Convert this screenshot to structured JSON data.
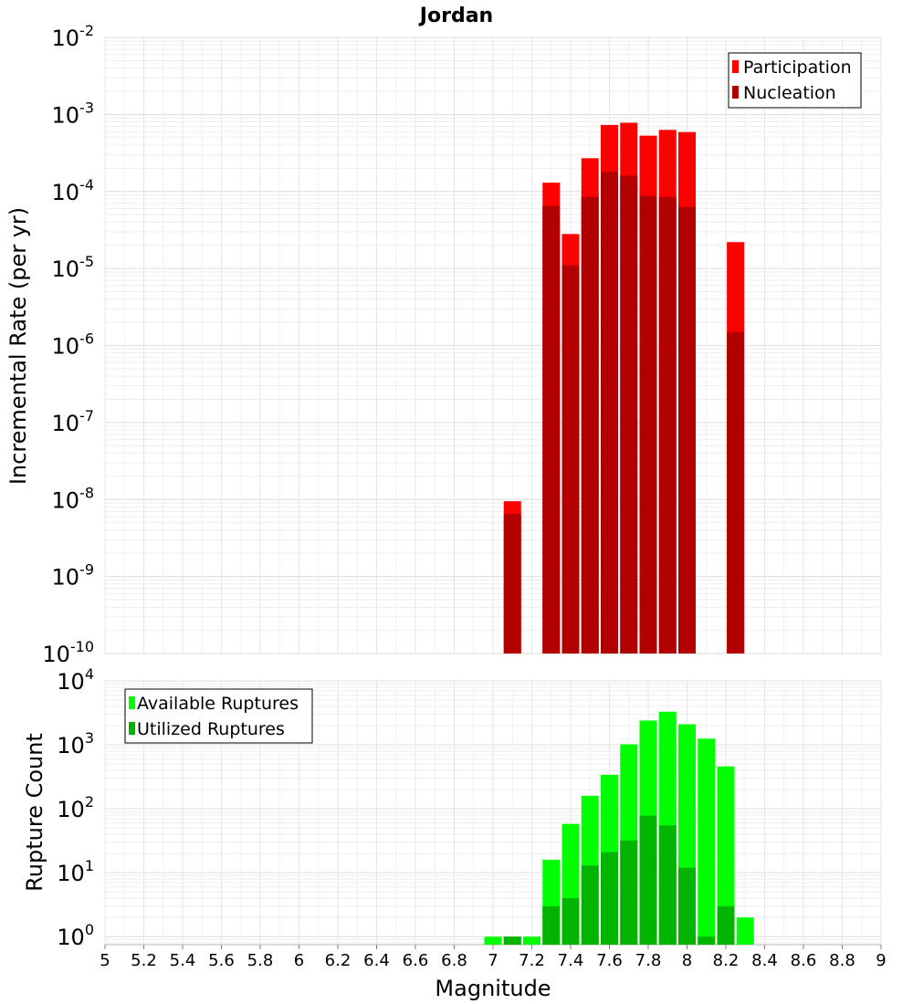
{
  "chart_data": [
    {
      "type": "bar",
      "scale": "log",
      "title": "Jordan",
      "xlabel": "Magnitude",
      "ylabel": "Incremental Rate (per yr)",
      "xlim": [
        5,
        9
      ],
      "ylim": [
        1e-10,
        0.01
      ],
      "y_tick_exponents": [
        -10,
        -9,
        -8,
        -7,
        -6,
        -5,
        -4,
        -3,
        -2
      ],
      "grid": true,
      "legend_position": "top-right",
      "series": [
        {
          "name": "Participation",
          "color": "#ff0000",
          "x": [
            7.1,
            7.3,
            7.4,
            7.5,
            7.6,
            7.7,
            7.8,
            7.9,
            8.0,
            8.25
          ],
          "values": [
            9.5e-09,
            0.00013,
            2.8e-05,
            0.00027,
            0.00073,
            0.00078,
            0.00053,
            0.00063,
            0.00059,
            2.2e-05
          ]
        },
        {
          "name": "Nucleation",
          "color": "#b20000",
          "x": [
            7.1,
            7.3,
            7.4,
            7.5,
            7.6,
            7.7,
            7.8,
            7.9,
            8.0,
            8.25
          ],
          "values": [
            6.5e-09,
            6.5e-05,
            1.1e-05,
            8.5e-05,
            0.00018,
            0.00016,
            8.8e-05,
            8.5e-05,
            6.3e-05,
            1.5e-06
          ]
        }
      ]
    },
    {
      "type": "bar",
      "scale": "log",
      "title": "",
      "xlabel": "Magnitude",
      "ylabel": "Rupture Count",
      "xlim": [
        5,
        9
      ],
      "ylim": [
        0.75,
        10000
      ],
      "y_tick_exponents": [
        0,
        1,
        2,
        3,
        4
      ],
      "x_ticks": [
        "5",
        "5.2",
        "5.4",
        "5.6",
        "5.8",
        "6",
        "6.2",
        "6.4",
        "6.6",
        "6.8",
        "7",
        "7.2",
        "7.4",
        "7.6",
        "7.8",
        "8",
        "8.2",
        "8.4",
        "8.6",
        "8.8",
        "9"
      ],
      "grid": true,
      "legend_position": "top-left",
      "series": [
        {
          "name": "Available Ruptures",
          "color": "#00ff00",
          "x": [
            7.0,
            7.1,
            7.2,
            7.3,
            7.4,
            7.5,
            7.6,
            7.7,
            7.8,
            7.9,
            8.0,
            8.1,
            8.2,
            8.3
          ],
          "values": [
            1,
            1,
            1,
            16,
            58,
            160,
            340,
            1020,
            2400,
            3300,
            2100,
            1250,
            460,
            2
          ]
        },
        {
          "name": "Utilized Ruptures",
          "color": "#00b400",
          "x": [
            7.1,
            7.3,
            7.4,
            7.5,
            7.6,
            7.7,
            7.8,
            7.9,
            8.0,
            8.1,
            8.2
          ],
          "values": [
            1,
            3,
            4,
            13,
            21,
            32,
            78,
            55,
            12,
            1,
            3
          ]
        }
      ]
    }
  ]
}
